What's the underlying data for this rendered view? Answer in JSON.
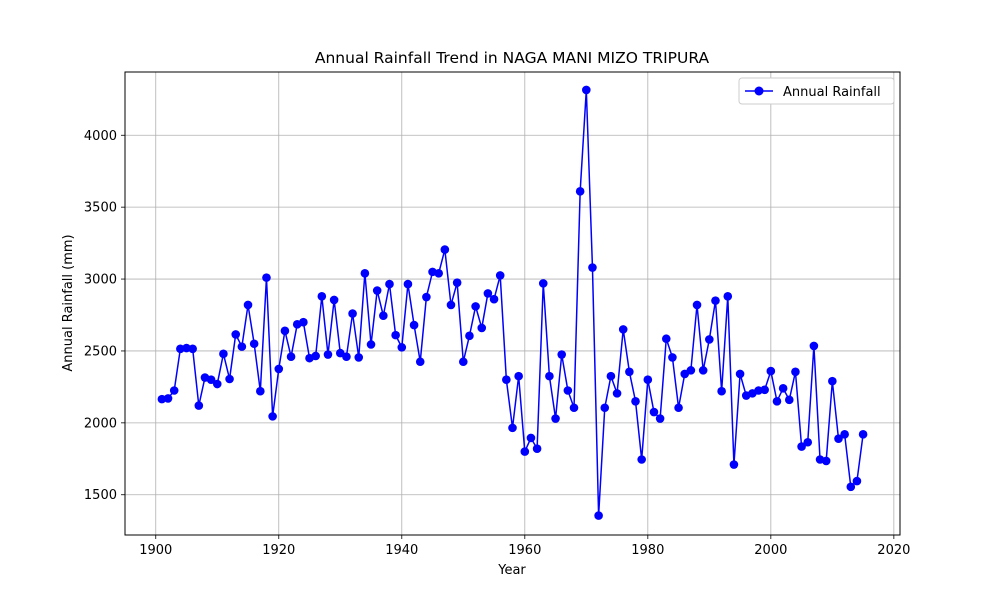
{
  "chart_data": {
    "type": "line",
    "title": "Annual Rainfall Trend in NAGA MANI MIZO TRIPURA",
    "xlabel": "Year",
    "ylabel": "Annual Rainfall (mm)",
    "xlim": [
      1895,
      2021
    ],
    "ylim": [
      1220,
      4440
    ],
    "xticks": [
      1900,
      1920,
      1940,
      1960,
      1980,
      2000,
      2020
    ],
    "yticks": [
      1500,
      2000,
      2500,
      3000,
      3500,
      4000
    ],
    "grid": true,
    "legend_position": "top-right",
    "series": [
      {
        "name": "Annual Rainfall",
        "color": "#0000ff",
        "marker": "circle",
        "x": [
          1901,
          1902,
          1903,
          1904,
          1905,
          1906,
          1907,
          1908,
          1909,
          1910,
          1911,
          1912,
          1913,
          1914,
          1915,
          1916,
          1917,
          1918,
          1919,
          1920,
          1921,
          1922,
          1923,
          1924,
          1925,
          1926,
          1927,
          1928,
          1929,
          1930,
          1931,
          1932,
          1933,
          1934,
          1935,
          1936,
          1937,
          1938,
          1939,
          1940,
          1941,
          1942,
          1943,
          1944,
          1945,
          1946,
          1947,
          1948,
          1949,
          1950,
          1951,
          1952,
          1953,
          1954,
          1955,
          1956,
          1957,
          1958,
          1959,
          1960,
          1961,
          1962,
          1963,
          1964,
          1965,
          1966,
          1967,
          1968,
          1969,
          1970,
          1971,
          1972,
          1973,
          1974,
          1975,
          1976,
          1977,
          1978,
          1979,
          1980,
          1981,
          1982,
          1983,
          1984,
          1985,
          1986,
          1987,
          1988,
          1989,
          1990,
          1991,
          1992,
          1993,
          1994,
          1995,
          1996,
          1997,
          1998,
          1999,
          2000,
          2001,
          2002,
          2003,
          2004,
          2005,
          2006,
          2007,
          2008,
          2009,
          2010,
          2011,
          2012,
          2013,
          2014,
          2015
        ],
        "y": [
          2165,
          2170,
          2225,
          2515,
          2520,
          2515,
          2120,
          2315,
          2300,
          2270,
          2480,
          2305,
          2615,
          2530,
          2820,
          2550,
          2220,
          3010,
          2045,
          2375,
          2640,
          2460,
          2685,
          2700,
          2450,
          2465,
          2880,
          2475,
          2855,
          2485,
          2460,
          2760,
          2455,
          3040,
          2545,
          2920,
          2745,
          2965,
          2610,
          2525,
          2965,
          2680,
          2425,
          2875,
          3050,
          3040,
          3205,
          2820,
          2975,
          2425,
          2605,
          2810,
          2660,
          2900,
          2860,
          3025,
          2300,
          1965,
          2325,
          1800,
          1895,
          1820,
          2970,
          2325,
          2030,
          2475,
          2225,
          2105,
          3610,
          4315,
          3080,
          1355,
          2105,
          2325,
          2205,
          2650,
          2355,
          2150,
          1745,
          2300,
          2075,
          2030,
          2585,
          2455,
          2105,
          2340,
          2365,
          2820,
          2365,
          2580,
          2850,
          2220,
          2880,
          1710,
          2340,
          2190,
          2205,
          2225,
          2230,
          2360,
          2150,
          2240,
          2160,
          2355,
          1835,
          1865,
          2535,
          1745,
          1735,
          2290,
          1890,
          1920,
          1555,
          1595,
          1920
        ]
      }
    ]
  }
}
